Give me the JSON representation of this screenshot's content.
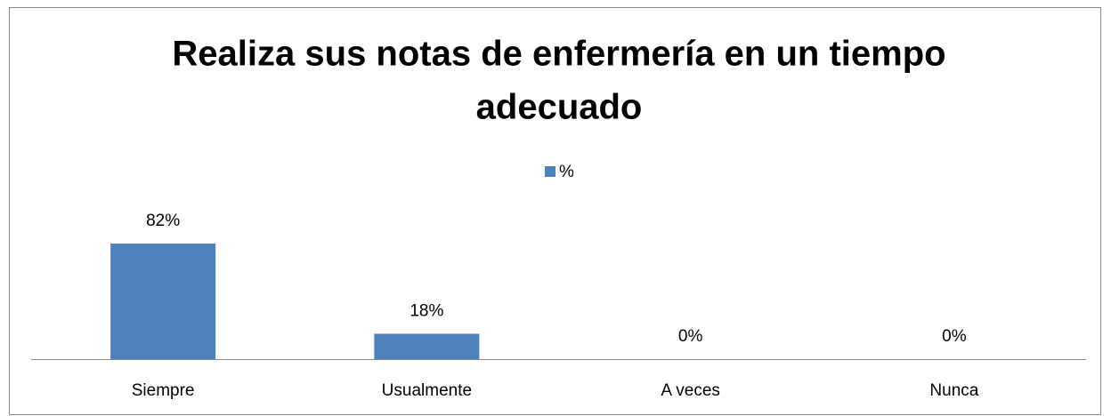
{
  "chart_data": {
    "type": "bar",
    "title": [
      "Realiza sus notas de enfermería en un tiempo",
      "adecuado"
    ],
    "categories": [
      "Siempre",
      "Usualmente",
      "A veces",
      "Nunca"
    ],
    "series": [
      {
        "name": "%",
        "color": "#4f81bd",
        "values": [
          82,
          18,
          0,
          0
        ],
        "value_labels": [
          "82%",
          "18%",
          "0%",
          "0%"
        ]
      }
    ],
    "legend": "top"
  }
}
